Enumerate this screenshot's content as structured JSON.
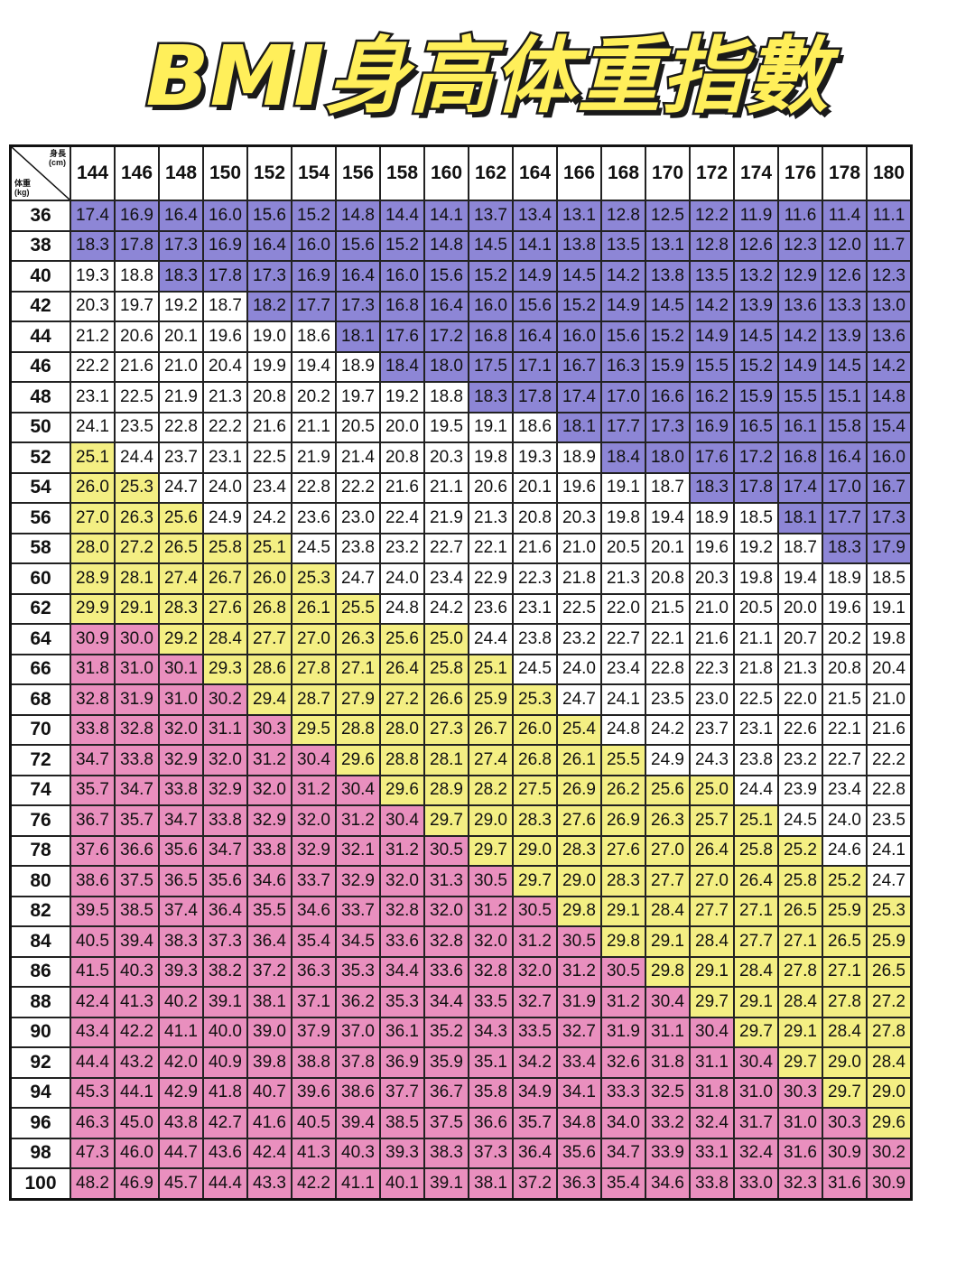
{
  "title": "BMI身高体重指數",
  "colors": {
    "under": "#8d86d6",
    "normal": "#ffffff",
    "over": "#f4ef83",
    "obese": "#e98fbe"
  },
  "chart_data": {
    "type": "table",
    "corner_label_height": "身長\n(cm)",
    "corner_label_weight": "体重\n(kg)",
    "heights": [
      "144",
      "146",
      "148",
      "150",
      "152",
      "154",
      "156",
      "158",
      "160",
      "162",
      "164",
      "166",
      "168",
      "170",
      "172",
      "174",
      "176",
      "178",
      "180"
    ],
    "weights": [
      "36",
      "38",
      "40",
      "42",
      "44",
      "46",
      "48",
      "50",
      "52",
      "54",
      "56",
      "58",
      "60",
      "62",
      "64",
      "66",
      "68",
      "70",
      "72",
      "74",
      "76",
      "78",
      "80",
      "82",
      "84",
      "86",
      "88",
      "90",
      "92",
      "94",
      "96",
      "98",
      "100"
    ],
    "values": [
      [
        "17.4",
        "16.9",
        "16.4",
        "16.0",
        "15.6",
        "15.2",
        "14.8",
        "14.4",
        "14.1",
        "13.7",
        "13.4",
        "13.1",
        "12.8",
        "12.5",
        "12.2",
        "11.9",
        "11.6",
        "11.4",
        "11.1"
      ],
      [
        "18.3",
        "17.8",
        "17.3",
        "16.9",
        "16.4",
        "16.0",
        "15.6",
        "15.2",
        "14.8",
        "14.5",
        "14.1",
        "13.8",
        "13.5",
        "13.1",
        "12.8",
        "12.6",
        "12.3",
        "12.0",
        "11.7"
      ],
      [
        "19.3",
        "18.8",
        "18.3",
        "17.8",
        "17.3",
        "16.9",
        "16.4",
        "16.0",
        "15.6",
        "15.2",
        "14.9",
        "14.5",
        "14.2",
        "13.8",
        "13.5",
        "13.2",
        "12.9",
        "12.6",
        "12.3"
      ],
      [
        "20.3",
        "19.7",
        "19.2",
        "18.7",
        "18.2",
        "17.7",
        "17.3",
        "16.8",
        "16.4",
        "16.0",
        "15.6",
        "15.2",
        "14.9",
        "14.5",
        "14.2",
        "13.9",
        "13.6",
        "13.3",
        "13.0"
      ],
      [
        "21.2",
        "20.6",
        "20.1",
        "19.6",
        "19.0",
        "18.6",
        "18.1",
        "17.6",
        "17.2",
        "16.8",
        "16.4",
        "16.0",
        "15.6",
        "15.2",
        "14.9",
        "14.5",
        "14.2",
        "13.9",
        "13.6"
      ],
      [
        "22.2",
        "21.6",
        "21.0",
        "20.4",
        "19.9",
        "19.4",
        "18.9",
        "18.4",
        "18.0",
        "17.5",
        "17.1",
        "16.7",
        "16.3",
        "15.9",
        "15.5",
        "15.2",
        "14.9",
        "14.5",
        "14.2"
      ],
      [
        "23.1",
        "22.5",
        "21.9",
        "21.3",
        "20.8",
        "20.2",
        "19.7",
        "19.2",
        "18.8",
        "18.3",
        "17.8",
        "17.4",
        "17.0",
        "16.6",
        "16.2",
        "15.9",
        "15.5",
        "15.1",
        "14.8"
      ],
      [
        "24.1",
        "23.5",
        "22.8",
        "22.2",
        "21.6",
        "21.1",
        "20.5",
        "20.0",
        "19.5",
        "19.1",
        "18.6",
        "18.1",
        "17.7",
        "17.3",
        "16.9",
        "16.5",
        "16.1",
        "15.8",
        "15.4"
      ],
      [
        "25.1",
        "24.4",
        "23.7",
        "23.1",
        "22.5",
        "21.9",
        "21.4",
        "20.8",
        "20.3",
        "19.8",
        "19.3",
        "18.9",
        "18.4",
        "18.0",
        "17.6",
        "17.2",
        "16.8",
        "16.4",
        "16.0"
      ],
      [
        "26.0",
        "25.3",
        "24.7",
        "24.0",
        "23.4",
        "22.8",
        "22.2",
        "21.6",
        "21.1",
        "20.6",
        "20.1",
        "19.6",
        "19.1",
        "18.7",
        "18.3",
        "17.8",
        "17.4",
        "17.0",
        "16.7"
      ],
      [
        "27.0",
        "26.3",
        "25.6",
        "24.9",
        "24.2",
        "23.6",
        "23.0",
        "22.4",
        "21.9",
        "21.3",
        "20.8",
        "20.3",
        "19.8",
        "19.4",
        "18.9",
        "18.5",
        "18.1",
        "17.7",
        "17.3"
      ],
      [
        "28.0",
        "27.2",
        "26.5",
        "25.8",
        "25.1",
        "24.5",
        "23.8",
        "23.2",
        "22.7",
        "22.1",
        "21.6",
        "21.0",
        "20.5",
        "20.1",
        "19.6",
        "19.2",
        "18.7",
        "18.3",
        "17.9"
      ],
      [
        "28.9",
        "28.1",
        "27.4",
        "26.7",
        "26.0",
        "25.3",
        "24.7",
        "24.0",
        "23.4",
        "22.9",
        "22.3",
        "21.8",
        "21.3",
        "20.8",
        "20.3",
        "19.8",
        "19.4",
        "18.9",
        "18.5"
      ],
      [
        "29.9",
        "29.1",
        "28.3",
        "27.6",
        "26.8",
        "26.1",
        "25.5",
        "24.8",
        "24.2",
        "23.6",
        "23.1",
        "22.5",
        "22.0",
        "21.5",
        "21.0",
        "20.5",
        "20.0",
        "19.6",
        "19.1"
      ],
      [
        "30.9",
        "30.0",
        "29.2",
        "28.4",
        "27.7",
        "27.0",
        "26.3",
        "25.6",
        "25.0",
        "24.4",
        "23.8",
        "23.2",
        "22.7",
        "22.1",
        "21.6",
        "21.1",
        "20.7",
        "20.2",
        "19.8"
      ],
      [
        "31.8",
        "31.0",
        "30.1",
        "29.3",
        "28.6",
        "27.8",
        "27.1",
        "26.4",
        "25.8",
        "25.1",
        "24.5",
        "24.0",
        "23.4",
        "22.8",
        "22.3",
        "21.8",
        "21.3",
        "20.8",
        "20.4"
      ],
      [
        "32.8",
        "31.9",
        "31.0",
        "30.2",
        "29.4",
        "28.7",
        "27.9",
        "27.2",
        "26.6",
        "25.9",
        "25.3",
        "24.7",
        "24.1",
        "23.5",
        "23.0",
        "22.5",
        "22.0",
        "21.5",
        "21.0"
      ],
      [
        "33.8",
        "32.8",
        "32.0",
        "31.1",
        "30.3",
        "29.5",
        "28.8",
        "28.0",
        "27.3",
        "26.7",
        "26.0",
        "25.4",
        "24.8",
        "24.2",
        "23.7",
        "23.1",
        "22.6",
        "22.1",
        "21.6"
      ],
      [
        "34.7",
        "33.8",
        "32.9",
        "32.0",
        "31.2",
        "30.4",
        "29.6",
        "28.8",
        "28.1",
        "27.4",
        "26.8",
        "26.1",
        "25.5",
        "24.9",
        "24.3",
        "23.8",
        "23.2",
        "22.7",
        "22.2"
      ],
      [
        "35.7",
        "34.7",
        "33.8",
        "32.9",
        "32.0",
        "31.2",
        "30.4",
        "29.6",
        "28.9",
        "28.2",
        "27.5",
        "26.9",
        "26.2",
        "25.6",
        "25.0",
        "24.4",
        "23.9",
        "23.4",
        "22.8"
      ],
      [
        "36.7",
        "35.7",
        "34.7",
        "33.8",
        "32.9",
        "32.0",
        "31.2",
        "30.4",
        "29.7",
        "29.0",
        "28.3",
        "27.6",
        "26.9",
        "26.3",
        "25.7",
        "25.1",
        "24.5",
        "24.0",
        "23.5"
      ],
      [
        "37.6",
        "36.6",
        "35.6",
        "34.7",
        "33.8",
        "32.9",
        "32.1",
        "31.2",
        "30.5",
        "29.7",
        "29.0",
        "28.3",
        "27.6",
        "27.0",
        "26.4",
        "25.8",
        "25.2",
        "24.6",
        "24.1"
      ],
      [
        "38.6",
        "37.5",
        "36.5",
        "35.6",
        "34.6",
        "33.7",
        "32.9",
        "32.0",
        "31.3",
        "30.5",
        "29.7",
        "29.0",
        "28.3",
        "27.7",
        "27.0",
        "26.4",
        "25.8",
        "25.2",
        "24.7"
      ],
      [
        "39.5",
        "38.5",
        "37.4",
        "36.4",
        "35.5",
        "34.6",
        "33.7",
        "32.8",
        "32.0",
        "31.2",
        "30.5",
        "29.8",
        "29.1",
        "28.4",
        "27.7",
        "27.1",
        "26.5",
        "25.9",
        "25.3"
      ],
      [
        "40.5",
        "39.4",
        "38.3",
        "37.3",
        "36.4",
        "35.4",
        "34.5",
        "33.6",
        "32.8",
        "32.0",
        "31.2",
        "30.5",
        "29.8",
        "29.1",
        "28.4",
        "27.7",
        "27.1",
        "26.5",
        "25.9"
      ],
      [
        "41.5",
        "40.3",
        "39.3",
        "38.2",
        "37.2",
        "36.3",
        "35.3",
        "34.4",
        "33.6",
        "32.8",
        "32.0",
        "31.2",
        "30.5",
        "29.8",
        "29.1",
        "28.4",
        "27.8",
        "27.1",
        "26.5"
      ],
      [
        "42.4",
        "41.3",
        "40.2",
        "39.1",
        "38.1",
        "37.1",
        "36.2",
        "35.3",
        "34.4",
        "33.5",
        "32.7",
        "31.9",
        "31.2",
        "30.4",
        "29.7",
        "29.1",
        "28.4",
        "27.8",
        "27.2"
      ],
      [
        "43.4",
        "42.2",
        "41.1",
        "40.0",
        "39.0",
        "37.9",
        "37.0",
        "36.1",
        "35.2",
        "34.3",
        "33.5",
        "32.7",
        "31.9",
        "31.1",
        "30.4",
        "29.7",
        "29.1",
        "28.4",
        "27.8"
      ],
      [
        "44.4",
        "43.2",
        "42.0",
        "40.9",
        "39.8",
        "38.8",
        "37.8",
        "36.9",
        "35.9",
        "35.1",
        "34.2",
        "33.4",
        "32.6",
        "31.8",
        "31.1",
        "30.4",
        "29.7",
        "29.0",
        "28.4"
      ],
      [
        "45.3",
        "44.1",
        "42.9",
        "41.8",
        "40.7",
        "39.6",
        "38.6",
        "37.7",
        "36.7",
        "35.8",
        "34.9",
        "34.1",
        "33.3",
        "32.5",
        "31.8",
        "31.0",
        "30.3",
        "29.7",
        "29.0"
      ],
      [
        "46.3",
        "45.0",
        "43.8",
        "42.7",
        "41.6",
        "40.5",
        "39.4",
        "38.5",
        "37.5",
        "36.6",
        "35.7",
        "34.8",
        "34.0",
        "33.2",
        "32.4",
        "31.7",
        "31.0",
        "30.3",
        "29.6"
      ],
      [
        "47.3",
        "46.0",
        "44.7",
        "43.6",
        "42.4",
        "41.3",
        "40.3",
        "39.3",
        "38.3",
        "37.3",
        "36.4",
        "35.6",
        "34.7",
        "33.9",
        "33.1",
        "32.4",
        "31.6",
        "30.9",
        "30.2"
      ],
      [
        "48.2",
        "46.9",
        "45.7",
        "44.4",
        "43.3",
        "42.2",
        "41.1",
        "40.1",
        "39.1",
        "38.1",
        "37.2",
        "36.3",
        "35.4",
        "34.6",
        "33.8",
        "33.0",
        "32.3",
        "31.6",
        "30.9"
      ]
    ]
  }
}
